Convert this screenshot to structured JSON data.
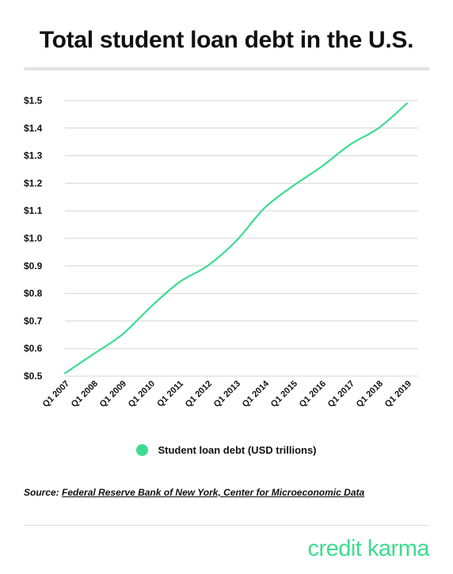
{
  "header": {
    "title": "Total student loan debt in the U.S."
  },
  "chart_data": {
    "type": "line",
    "title": "Total student loan debt in the U.S.",
    "xlabel": "",
    "ylabel": "",
    "ylim": [
      0.5,
      1.5
    ],
    "y_ticks": [
      "$0.5",
      "$0.6",
      "$0.7",
      "$0.8",
      "$0.9",
      "$1.0",
      "$1.1",
      "$1.2",
      "$1.3",
      "$1.4",
      "$1.5"
    ],
    "categories": [
      "Q1 2007",
      "Q1 2008",
      "Q1 2009",
      "Q1 2010",
      "Q1 2011",
      "Q1 2012",
      "Q1 2013",
      "Q1 2014",
      "Q1 2015",
      "Q1 2016",
      "Q1 2017",
      "Q1 2018",
      "Q1 2019"
    ],
    "grid": true,
    "legend_position": "bottom-center",
    "series": [
      {
        "name": "Student loan debt (USD trillions)",
        "color": "#3ddc8f",
        "values": [
          0.51,
          0.58,
          0.65,
          0.75,
          0.84,
          0.9,
          0.99,
          1.11,
          1.19,
          1.26,
          1.34,
          1.4,
          1.49
        ]
      }
    ]
  },
  "source": {
    "label": "Source:",
    "link_text": "Federal Reserve Bank of New York, Center for Microeconomic Data"
  },
  "brand": {
    "text": "credit karma",
    "color": "#3ddc8f"
  }
}
